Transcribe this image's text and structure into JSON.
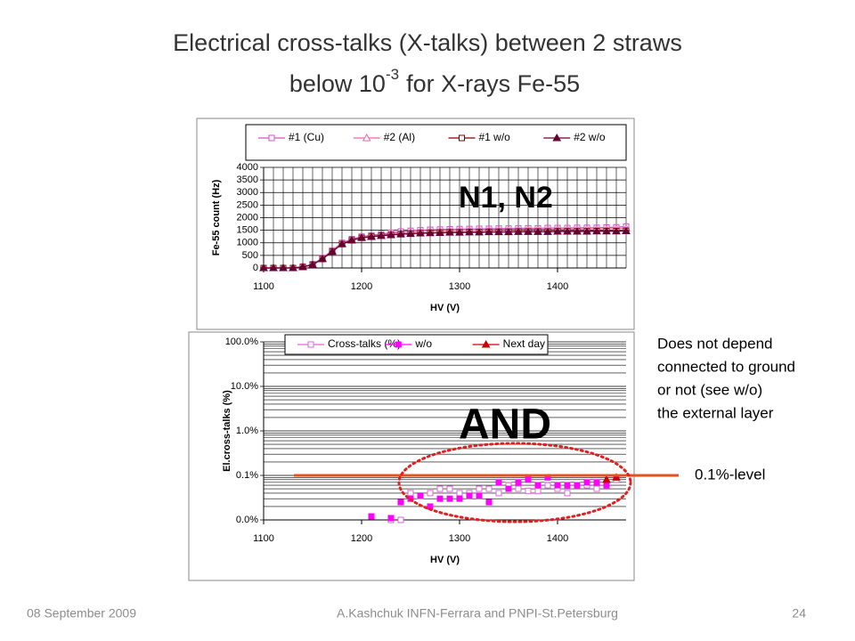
{
  "slide": {
    "title_line1": "Electrical cross-talks (X-talks) between 2 straws",
    "title_line2": "below 10",
    "title_sup": "-3",
    "title_line2_end": "for X-rays Fe-55",
    "footer_date": "08 September 2009",
    "footer_author": "A.Kashchuk  INFN-Ferrara and PNPI-St.Petersburg",
    "page_number": 24
  },
  "chart_data": [
    {
      "type": "line",
      "x_label": "HV (V)",
      "y_label": "Fe-55 count (Hz)",
      "annotation": "N1, N2",
      "x": [
        1100,
        1110,
        1120,
        1130,
        1140,
        1150,
        1160,
        1170,
        1180,
        1190,
        1200,
        1210,
        1220,
        1230,
        1240,
        1250,
        1260,
        1270,
        1280,
        1290,
        1300,
        1310,
        1320,
        1330,
        1340,
        1350,
        1360,
        1370,
        1380,
        1390,
        1400,
        1410,
        1420,
        1430,
        1440,
        1450,
        1460,
        1470
      ],
      "xlim": [
        1100,
        1470
      ],
      "xticks": [
        1100,
        1200,
        1300,
        1400
      ],
      "ylim": [
        0,
        4000
      ],
      "yticks": [
        0,
        500,
        1000,
        1500,
        2000,
        2500,
        3000,
        3500,
        4000
      ],
      "grid": "both",
      "connect": true,
      "series": [
        {
          "name": "#1 (Cu)",
          "color": "#cc55cc",
          "marker": "square",
          "filled": false,
          "values": [
            0,
            0,
            0,
            0,
            50,
            150,
            400,
            700,
            1000,
            1150,
            1250,
            1300,
            1350,
            1400,
            1450,
            1480,
            1500,
            1520,
            1530,
            1540,
            1550,
            1550,
            1560,
            1560,
            1570,
            1570,
            1580,
            1580,
            1580,
            1590,
            1590,
            1590,
            1600,
            1600,
            1600,
            1610,
            1620,
            1650
          ]
        },
        {
          "name": "#2 (Al)",
          "color": "#ee66aa",
          "marker": "triangle",
          "filled": false,
          "values": [
            0,
            0,
            0,
            0,
            50,
            140,
            380,
            680,
            980,
            1130,
            1230,
            1280,
            1320,
            1360,
            1400,
            1430,
            1450,
            1470,
            1480,
            1490,
            1500,
            1510,
            1510,
            1520,
            1520,
            1530,
            1530,
            1540,
            1540,
            1540,
            1550,
            1550,
            1550,
            1560,
            1560,
            1560,
            1570,
            1580
          ]
        },
        {
          "name": "#1 w/o",
          "color": "#800000",
          "marker": "square",
          "filled": false,
          "values": [
            0,
            0,
            0,
            0,
            40,
            130,
            360,
            650,
            950,
            1100,
            1200,
            1250,
            1290,
            1320,
            1350,
            1370,
            1390,
            1400,
            1410,
            1420,
            1420,
            1430,
            1430,
            1440,
            1440,
            1440,
            1450,
            1450,
            1450,
            1450,
            1460,
            1460,
            1460,
            1460,
            1470,
            1470,
            1470,
            1480
          ]
        },
        {
          "name": "#2 w/o",
          "color": "#660033",
          "marker": "triangle",
          "filled": true,
          "values": [
            0,
            0,
            0,
            0,
            40,
            130,
            360,
            650,
            950,
            1100,
            1200,
            1240,
            1280,
            1310,
            1340,
            1360,
            1380,
            1390,
            1400,
            1410,
            1410,
            1420,
            1420,
            1430,
            1430,
            1430,
            1440,
            1440,
            1440,
            1440,
            1450,
            1450,
            1450,
            1450,
            1460,
            1460,
            1460,
            1470
          ]
        }
      ]
    },
    {
      "type": "scatter",
      "x_label": "HV (V)",
      "y_label": "El.cross-talks (%)",
      "annotation": "AND",
      "note_lines": [
        "Does not depend",
        "connected to ground",
        "or not (see w/o)",
        "the external layer"
      ],
      "level": 0.1,
      "level_label": "0.1%-level",
      "level_color": "#e8501c",
      "x": [
        1210,
        1220,
        1230,
        1240,
        1250,
        1260,
        1270,
        1280,
        1290,
        1300,
        1310,
        1320,
        1330,
        1340,
        1350,
        1360,
        1370,
        1380,
        1390,
        1400,
        1410,
        1420,
        1430,
        1440,
        1450,
        1460
      ],
      "xlim": [
        1100,
        1470
      ],
      "xticks": [
        1100,
        1200,
        1300,
        1400
      ],
      "ylim": [
        0.01,
        100
      ],
      "log_y": true,
      "yticks": [
        {
          "value": 0.01,
          "label": "0.0%"
        },
        {
          "value": 0.1,
          "label": "0.1%"
        },
        {
          "value": 1,
          "label": "1.0%"
        },
        {
          "value": 10,
          "label": "10.0%"
        },
        {
          "value": 100,
          "label": "100.0%"
        }
      ],
      "grid": "y",
      "minor_grid": true,
      "connect": false,
      "series": [
        {
          "name": "Cross-talks (%)",
          "color": "#dd66dd",
          "marker": "square",
          "filled": false,
          "values": [
            null,
            null,
            0.01,
            0.01,
            0.04,
            0.035,
            0.04,
            0.05,
            0.05,
            0.04,
            0.04,
            0.05,
            0.05,
            0.04,
            0.06,
            0.05,
            0.045,
            0.045,
            0.06,
            0.05,
            0.04,
            0.06,
            0.06,
            0.05,
            0.06,
            0.08
          ]
        },
        {
          "name": "w/o",
          "color": "#ff00ff",
          "marker": "square",
          "filled": true,
          "values": [
            0.012,
            null,
            0.011,
            0.025,
            0.03,
            0.035,
            0.02,
            0.03,
            0.03,
            0.03,
            0.035,
            0.035,
            0.025,
            0.07,
            0.05,
            0.07,
            0.08,
            0.06,
            0.09,
            0.06,
            0.06,
            0.06,
            0.07,
            0.07,
            0.06,
            0.09
          ]
        },
        {
          "name": "Next day",
          "color": "#cc0000",
          "marker": "triangle",
          "filled": true,
          "values": [
            null,
            null,
            null,
            null,
            null,
            null,
            null,
            null,
            null,
            null,
            null,
            null,
            null,
            null,
            null,
            null,
            null,
            null,
            null,
            null,
            null,
            null,
            null,
            null,
            0.08,
            0.09
          ]
        }
      ]
    }
  ]
}
